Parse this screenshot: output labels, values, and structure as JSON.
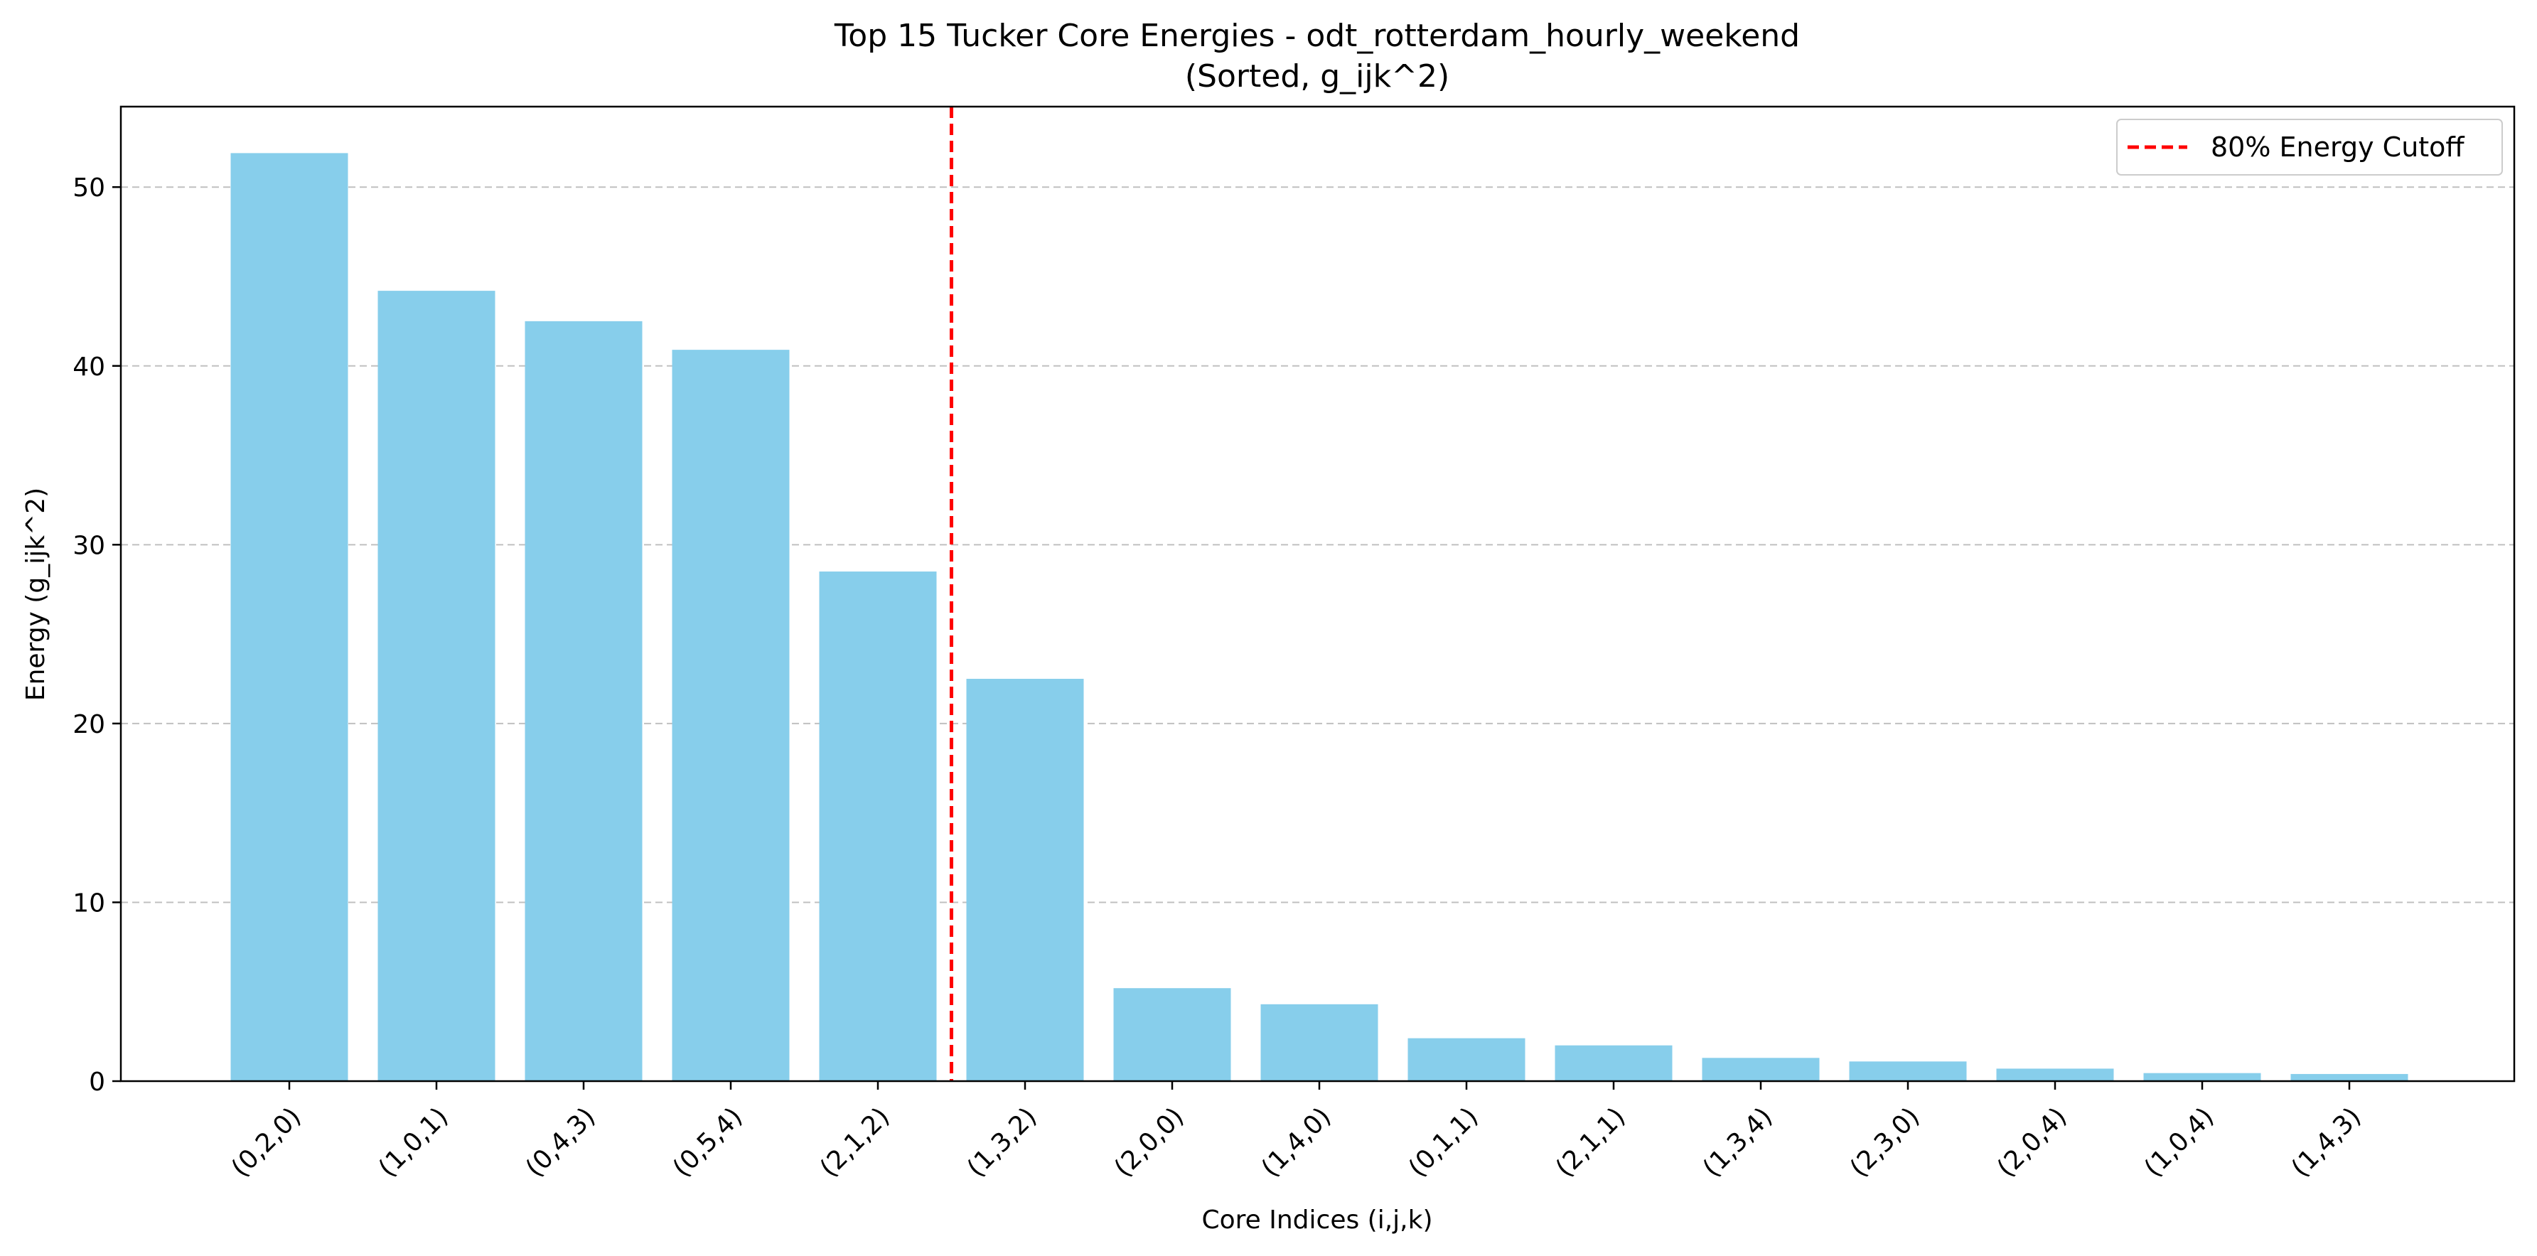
{
  "chart_data": {
    "type": "bar",
    "title": "Top 15 Tucker Core Energies - odt_rotterdam_hourly_weekend",
    "subtitle": "(Sorted, g_ijk^2)",
    "xlabel": "Core Indices (i,j,k)",
    "ylabel": "Energy (g_ijk^2)",
    "categories": [
      "(0,2,0)",
      "(1,0,1)",
      "(0,4,3)",
      "(0,5,4)",
      "(2,1,2)",
      "(1,3,2)",
      "(2,0,0)",
      "(1,4,0)",
      "(0,1,1)",
      "(2,1,1)",
      "(1,3,4)",
      "(2,3,0)",
      "(2,0,4)",
      "(1,0,4)",
      "(1,4,3)"
    ],
    "values": [
      51.9,
      44.2,
      42.5,
      40.9,
      28.5,
      22.5,
      5.2,
      4.3,
      2.4,
      2.0,
      1.3,
      1.1,
      0.7,
      0.45,
      0.4
    ],
    "ylim": [
      0,
      54.5
    ],
    "yticks": [
      0,
      10,
      20,
      30,
      40,
      50
    ],
    "grid": "y-dashed",
    "bar_color": "#87ceeb",
    "cutoff": {
      "label": "80% Energy Cutoff",
      "after_index": 4,
      "color": "#ff0000"
    },
    "legend": "top-right"
  }
}
